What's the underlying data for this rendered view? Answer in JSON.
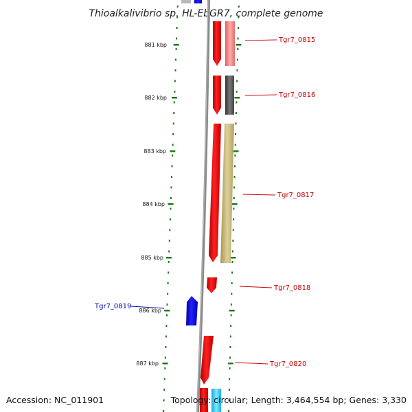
{
  "title": "Thioalkalivibrio sp. HL-EbGR7, complete genome",
  "footer": {
    "accession": "Accession: NC_011901",
    "summary": "Topology: circular; Length: 3,464,554 bp; Genes: 3,330"
  },
  "kbp_ticks": [
    "881 kbp",
    "882 kbp",
    "883 kbp",
    "884 kbp",
    "885 kbp",
    "886 kbp",
    "887 kbp"
  ],
  "genes": [
    {
      "id": "Tgr7_0815",
      "strand": "forward"
    },
    {
      "id": "Tgr7_0816",
      "strand": "forward"
    },
    {
      "id": "Tgr7_0817",
      "strand": "forward"
    },
    {
      "id": "Tgr7_0818",
      "strand": "forward"
    },
    {
      "id": "Tgr7_0819",
      "strand": "reverse"
    },
    {
      "id": "Tgr7_0820",
      "strand": "forward"
    }
  ],
  "colors": {
    "forward_gene": "#ff0000",
    "reverse_gene": "#0000ee",
    "forward_label": "#cc0000",
    "reverse_label": "#0000aa",
    "tick": "#1a7a1a",
    "backbone": "#888888",
    "cog_pink": "#f08080",
    "cog_dark": "#555555",
    "cog_olive": "#c8b870",
    "cog_cyan": "#33ccee"
  }
}
